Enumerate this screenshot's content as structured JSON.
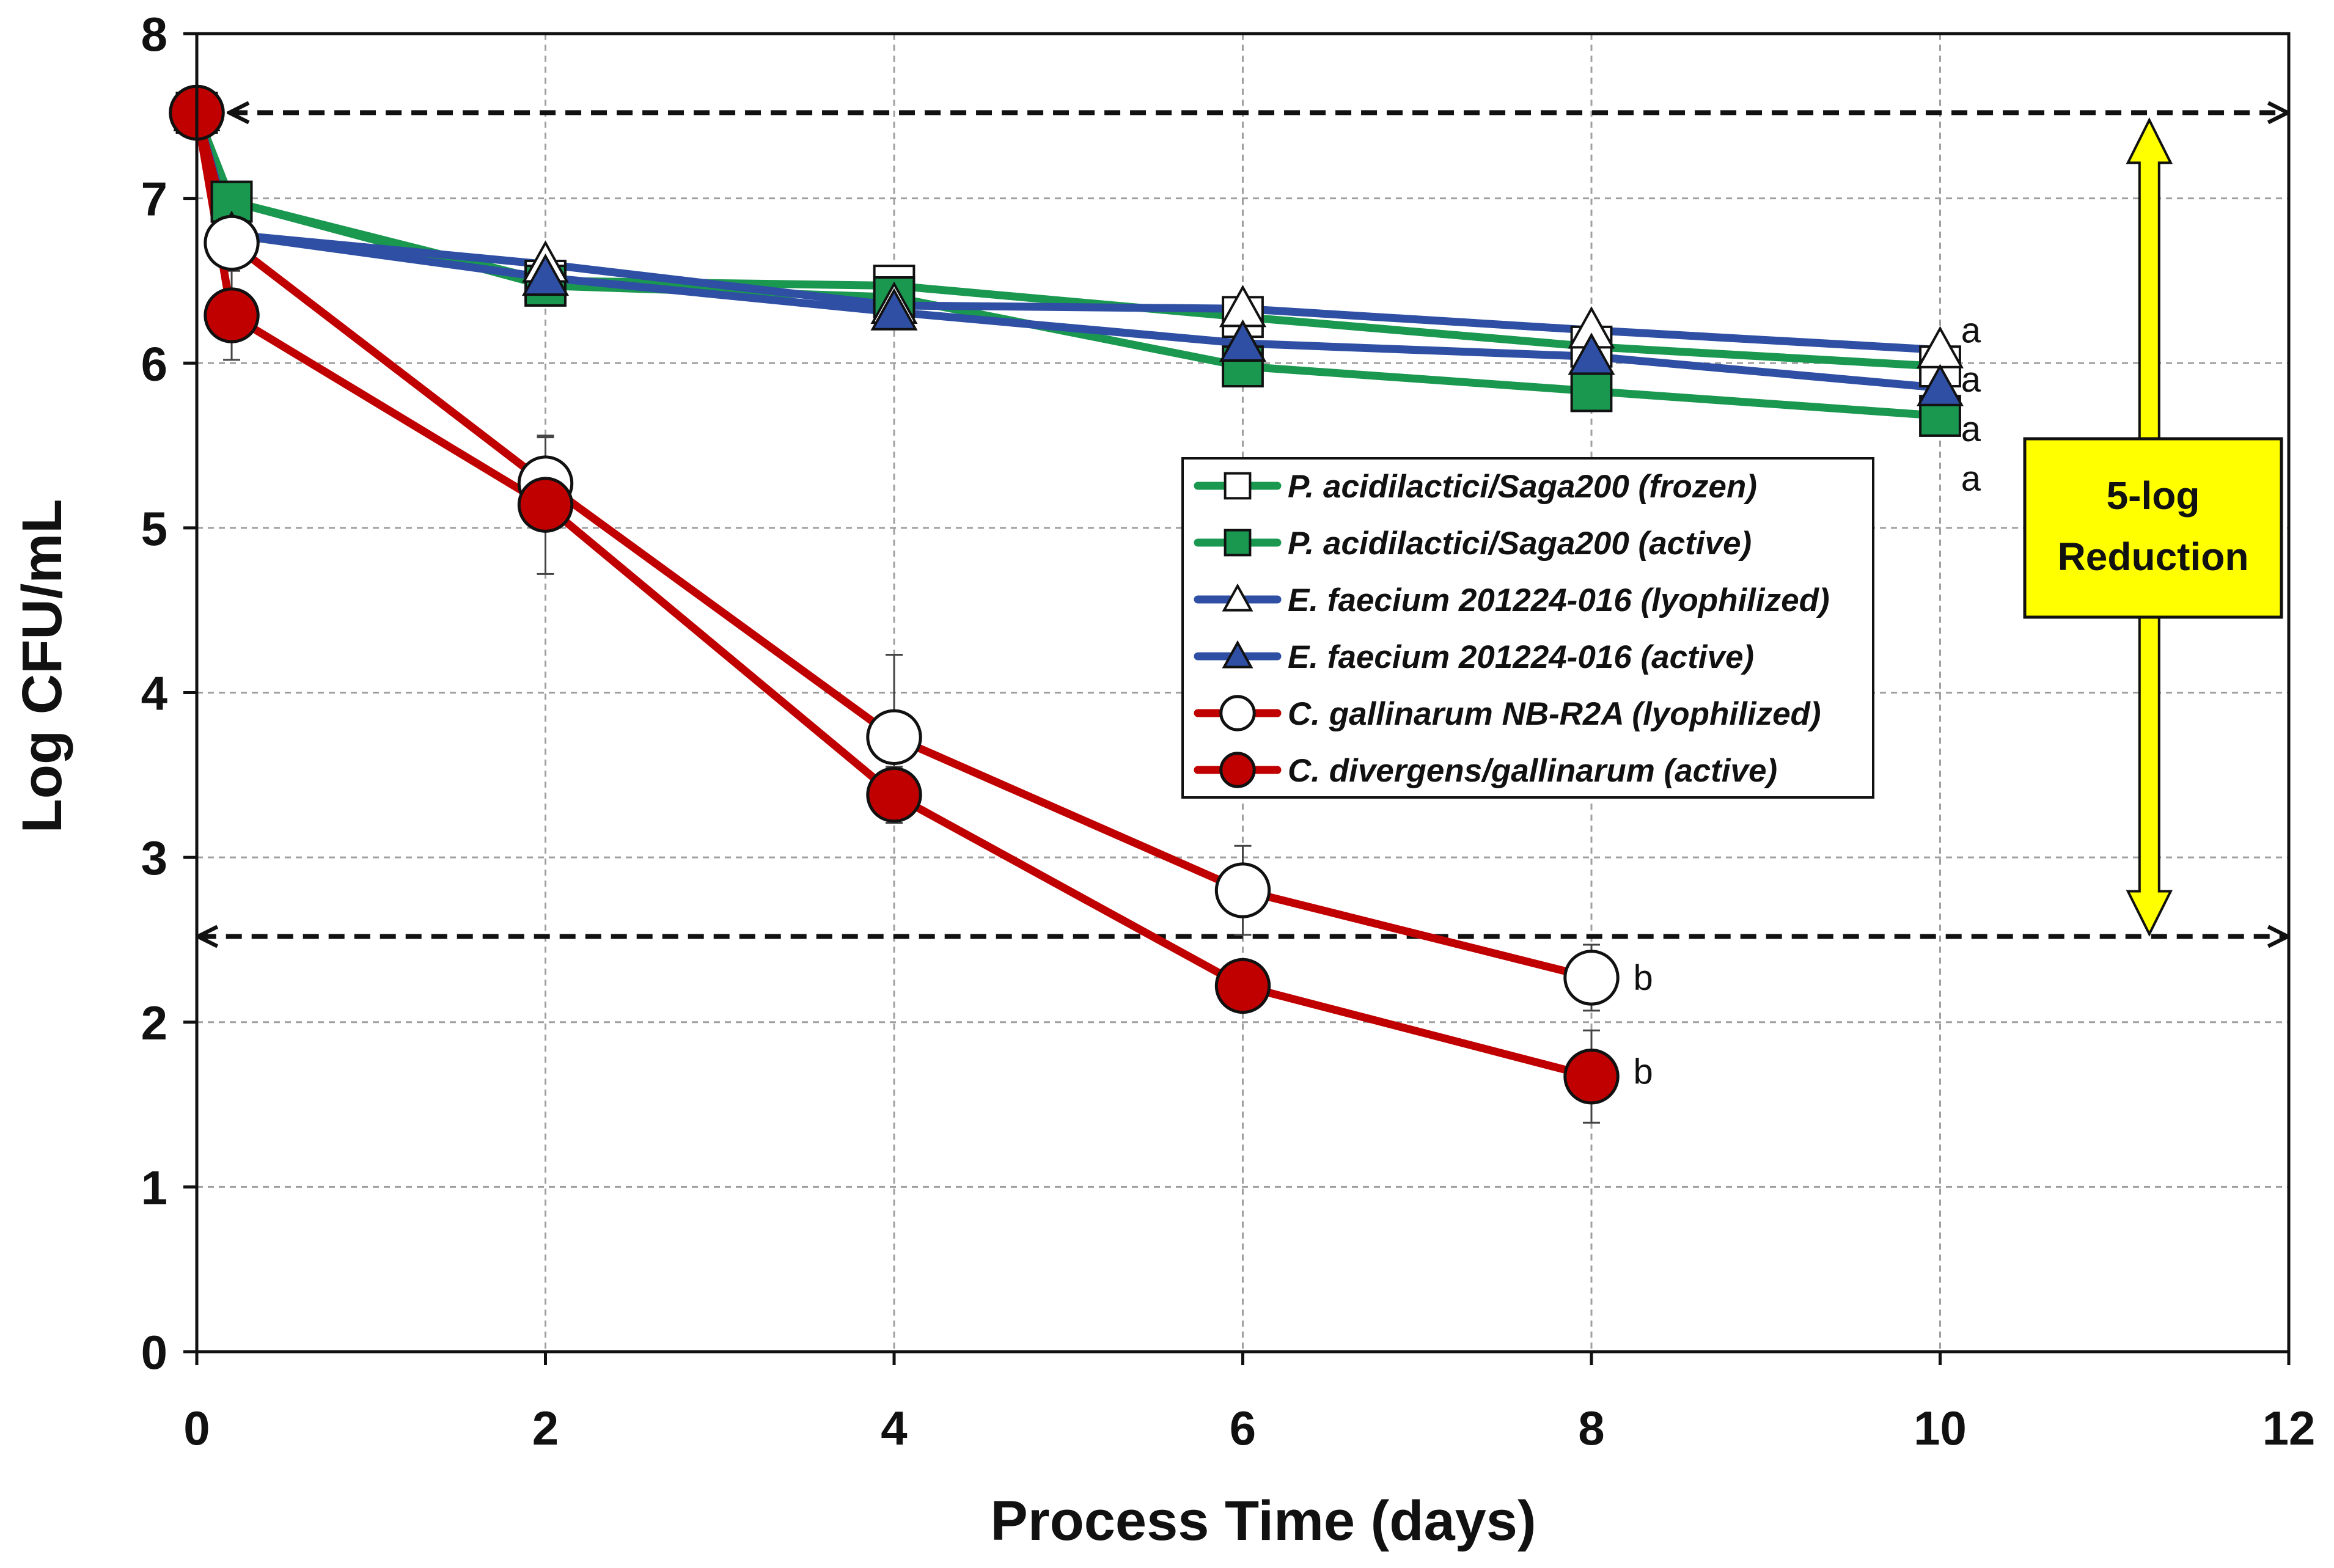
{
  "chart_data": {
    "type": "line",
    "title": "",
    "xlabel": "Process Time (days)",
    "ylabel": "Log CFU/mL",
    "xlim": [
      0,
      12
    ],
    "ylim": [
      0,
      8
    ],
    "xticks": [
      0,
      2,
      4,
      6,
      8,
      10,
      12
    ],
    "yticks": [
      0,
      1,
      2,
      3,
      4,
      5,
      6,
      7,
      8
    ],
    "grid": true,
    "legend_position": "center-right",
    "series": [
      {
        "name": "P. acidilactici/Saga200 (frozen)",
        "color": "#1a9850",
        "marker": "square",
        "filled": false,
        "x": [
          0,
          0.2,
          2,
          4,
          6,
          8,
          10
        ],
        "y": [
          7.52,
          6.98,
          6.5,
          6.47,
          6.28,
          6.1,
          5.98
        ],
        "significance_letter": "a"
      },
      {
        "name": "P. acidilactici/Saga200 (active)",
        "color": "#1a9850",
        "marker": "square",
        "filled": true,
        "x": [
          0,
          0.2,
          2,
          4,
          6,
          8,
          10
        ],
        "y": [
          7.52,
          6.98,
          6.47,
          6.4,
          5.98,
          5.83,
          5.68
        ],
        "significance_letter": "a"
      },
      {
        "name": "E. faecium 201224-016 (lyophilized)",
        "color": "#2e4fa3",
        "marker": "triangle",
        "filled": false,
        "x": [
          0,
          0.2,
          2,
          4,
          6,
          8,
          10
        ],
        "y": [
          7.52,
          6.78,
          6.6,
          6.35,
          6.33,
          6.2,
          6.08
        ],
        "significance_letter": "a"
      },
      {
        "name": "E. faecium 201224-016 (active)",
        "color": "#2e4fa3",
        "marker": "triangle",
        "filled": true,
        "x": [
          0,
          0.2,
          2,
          4,
          6,
          8,
          10
        ],
        "y": [
          7.52,
          6.78,
          6.52,
          6.31,
          6.12,
          6.04,
          5.85
        ],
        "significance_letter": "a"
      },
      {
        "name": "C. gallinarum NB-R2A (lyophilized)",
        "color": "#c00000",
        "marker": "circle",
        "filled": false,
        "x": [
          0,
          0.2,
          2,
          4,
          6,
          8
        ],
        "y": [
          7.52,
          6.73,
          5.27,
          3.73,
          2.8,
          2.27
        ],
        "error": [
          0,
          0,
          0.28,
          0.5,
          0.27,
          0.2
        ],
        "significance_letter": "b"
      },
      {
        "name": "C. divergens/gallinarum (active)",
        "color": "#c00000",
        "marker": "circle",
        "filled": true,
        "x": [
          0,
          0.2,
          2,
          4,
          6,
          8
        ],
        "y": [
          7.52,
          6.29,
          5.14,
          3.38,
          2.22,
          1.67
        ],
        "error": [
          0,
          0.27,
          0.42,
          0.17,
          0,
          0.28
        ],
        "significance_letter": "b"
      }
    ],
    "reference_lines": [
      {
        "y": 7.52,
        "x_range": [
          0.2,
          11.98
        ],
        "style": "dashed",
        "arrows": "both"
      },
      {
        "y": 2.52,
        "x_range": [
          0.02,
          11.98
        ],
        "style": "dashed",
        "arrows": "both"
      }
    ],
    "callout": {
      "line1": "5-log",
      "line2": "Reduction",
      "x": 11.2,
      "y_range": [
        2.52,
        7.52
      ],
      "fill": "#ffff00"
    },
    "significance_labels": [
      {
        "text": "a",
        "x": 10.12,
        "y": 6.2
      },
      {
        "text": "a",
        "x": 10.12,
        "y": 5.9
      },
      {
        "text": "a",
        "x": 10.12,
        "y": 5.6
      },
      {
        "text": "a",
        "x": 10.12,
        "y": 5.3
      },
      {
        "text": "b",
        "x": 8.24,
        "y": 2.27
      },
      {
        "text": "b",
        "x": 8.24,
        "y": 1.7
      }
    ]
  }
}
